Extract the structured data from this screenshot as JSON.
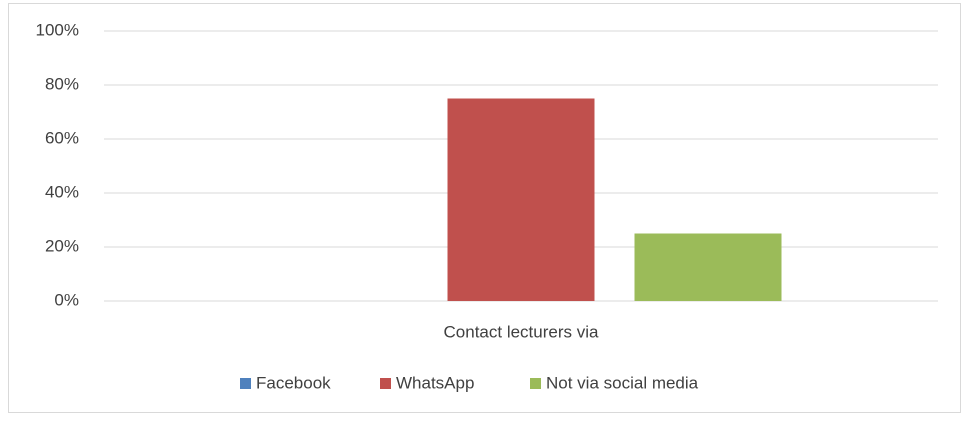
{
  "chart_data": {
    "type": "bar",
    "categories": [
      "Contact lecturers via"
    ],
    "series": [
      {
        "name": "Facebook",
        "color": "#4f81bd",
        "values": [
          0
        ]
      },
      {
        "name": "WhatsApp",
        "color": "#c0504d",
        "values": [
          75
        ]
      },
      {
        "name": "Not via social media",
        "color": "#9bbb59",
        "values": [
          25
        ]
      }
    ],
    "ylim": [
      0,
      100
    ],
    "yticks": [
      {
        "value": 0,
        "label": "0%"
      },
      {
        "value": 20,
        "label": "20%"
      },
      {
        "value": 40,
        "label": "40%"
      },
      {
        "value": 60,
        "label": "60%"
      },
      {
        "value": 80,
        "label": "80%"
      },
      {
        "value": 100,
        "label": "100%"
      }
    ],
    "grid": true,
    "legend": "bottom"
  }
}
